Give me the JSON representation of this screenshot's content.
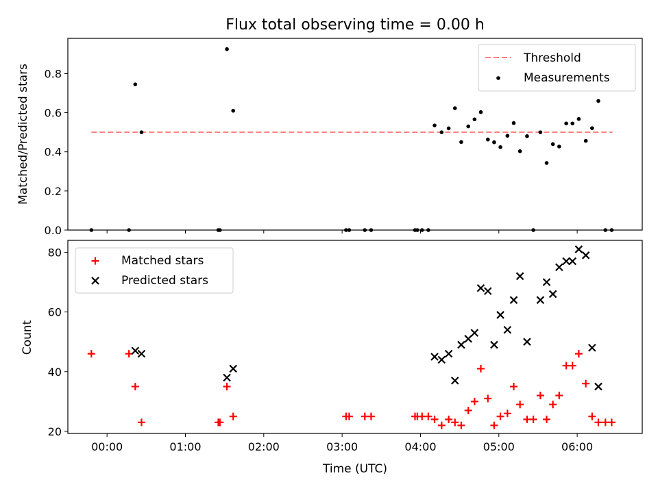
{
  "title": "Flux total observing time = 0.00 h",
  "colors": {
    "threshold": "#ff7f7f",
    "measurement": "#000000",
    "matched": "#ff0000",
    "predicted": "#000000",
    "axes": "#000000",
    "legend_border": "#cccccc"
  },
  "chart_data": [
    {
      "type": "scatter",
      "ylabel": "Matched/Predicted stars",
      "xlabel": "",
      "xlim_hours": [
        -0.5,
        6.83
      ],
      "ylim": [
        0,
        0.98
      ],
      "yticks": [
        0.0,
        0.2,
        0.4,
        0.6,
        0.8
      ],
      "ytick_labels": [
        "0.0",
        "0.2",
        "0.4",
        "0.6",
        "0.8"
      ],
      "legend_position": "top-right",
      "threshold": {
        "name": "Threshold",
        "y": 0.5,
        "x_range_hours": [
          -0.2,
          6.45
        ]
      },
      "series": [
        {
          "name": "Measurements",
          "marker": "dot",
          "points": [
            [
              -0.2,
              0.0
            ],
            [
              0.28,
              0.0
            ],
            [
              0.36,
              0.745
            ],
            [
              0.44,
              0.5
            ],
            [
              1.42,
              0.0
            ],
            [
              1.44,
              0.0
            ],
            [
              1.53,
              0.925
            ],
            [
              1.61,
              0.61
            ],
            [
              3.05,
              0.0
            ],
            [
              3.09,
              0.0
            ],
            [
              3.29,
              0.0
            ],
            [
              3.37,
              0.0
            ],
            [
              3.93,
              0.0
            ],
            [
              3.96,
              0.0
            ],
            [
              4.02,
              0.0
            ],
            [
              4.1,
              0.0
            ],
            [
              4.18,
              0.535
            ],
            [
              4.27,
              0.5
            ],
            [
              4.36,
              0.52
            ],
            [
              4.44,
              0.623
            ],
            [
              4.52,
              0.45
            ],
            [
              4.61,
              0.53
            ],
            [
              4.69,
              0.566
            ],
            [
              4.77,
              0.603
            ],
            [
              4.86,
              0.463
            ],
            [
              4.94,
              0.449
            ],
            [
              5.02,
              0.424
            ],
            [
              5.11,
              0.482
            ],
            [
              5.19,
              0.547
            ],
            [
              5.27,
              0.403
            ],
            [
              5.36,
              0.48
            ],
            [
              5.44,
              0.0
            ],
            [
              5.53,
              0.5
            ],
            [
              5.61,
              0.343
            ],
            [
              5.69,
              0.439
            ],
            [
              5.77,
              0.427
            ],
            [
              5.86,
              0.545
            ],
            [
              5.94,
              0.545
            ],
            [
              6.02,
              0.568
            ],
            [
              6.11,
              0.456
            ],
            [
              6.19,
              0.521
            ],
            [
              6.27,
              0.66
            ],
            [
              6.36,
              0.0
            ],
            [
              6.44,
              0.0
            ]
          ]
        }
      ]
    },
    {
      "type": "scatter",
      "ylabel": "Count",
      "xlabel": "Time (UTC)",
      "xlim_hours": [
        -0.5,
        6.83
      ],
      "ylim": [
        19.3,
        84
      ],
      "yticks": [
        20,
        40,
        60,
        80
      ],
      "ytick_labels": [
        "20",
        "40",
        "60",
        "80"
      ],
      "xticks_hours": [
        0,
        1,
        2,
        3,
        4,
        5,
        6
      ],
      "xtick_labels": [
        "00:00",
        "01:00",
        "02:00",
        "03:00",
        "04:00",
        "05:00",
        "06:00"
      ],
      "legend_position": "top-left",
      "series": [
        {
          "name": "Matched stars",
          "marker": "plus",
          "points": [
            [
              -0.2,
              46
            ],
            [
              0.28,
              46
            ],
            [
              0.36,
              35
            ],
            [
              0.44,
              23
            ],
            [
              1.42,
              23
            ],
            [
              1.44,
              23
            ],
            [
              1.53,
              35
            ],
            [
              1.61,
              25
            ],
            [
              3.05,
              25
            ],
            [
              3.09,
              25
            ],
            [
              3.29,
              25
            ],
            [
              3.37,
              25
            ],
            [
              3.93,
              25
            ],
            [
              3.96,
              25
            ],
            [
              4.02,
              25
            ],
            [
              4.1,
              25
            ],
            [
              4.18,
              24
            ],
            [
              4.27,
              22
            ],
            [
              4.36,
              24
            ],
            [
              4.44,
              23
            ],
            [
              4.52,
              22
            ],
            [
              4.61,
              27
            ],
            [
              4.69,
              30
            ],
            [
              4.77,
              41
            ],
            [
              4.86,
              31
            ],
            [
              4.94,
              22
            ],
            [
              5.02,
              25
            ],
            [
              5.11,
              26
            ],
            [
              5.19,
              35
            ],
            [
              5.27,
              29
            ],
            [
              5.36,
              24
            ],
            [
              5.44,
              24
            ],
            [
              5.53,
              32
            ],
            [
              5.61,
              24
            ],
            [
              5.69,
              29
            ],
            [
              5.77,
              32
            ],
            [
              5.86,
              42
            ],
            [
              5.94,
              42
            ],
            [
              6.02,
              46
            ],
            [
              6.11,
              36
            ],
            [
              6.19,
              25
            ],
            [
              6.27,
              23
            ],
            [
              6.36,
              23
            ],
            [
              6.44,
              23
            ]
          ]
        },
        {
          "name": "Predicted stars",
          "marker": "x",
          "points": [
            [
              0.36,
              47
            ],
            [
              0.44,
              46
            ],
            [
              1.53,
              38
            ],
            [
              1.61,
              41
            ],
            [
              4.18,
              45
            ],
            [
              4.27,
              44
            ],
            [
              4.36,
              46
            ],
            [
              4.44,
              37
            ],
            [
              4.52,
              49
            ],
            [
              4.61,
              51
            ],
            [
              4.69,
              53
            ],
            [
              4.77,
              68
            ],
            [
              4.86,
              67
            ],
            [
              4.94,
              49
            ],
            [
              5.02,
              59
            ],
            [
              5.11,
              54
            ],
            [
              5.19,
              64
            ],
            [
              5.27,
              72
            ],
            [
              5.36,
              50
            ],
            [
              5.53,
              64
            ],
            [
              5.61,
              70
            ],
            [
              5.69,
              66
            ],
            [
              5.77,
              75
            ],
            [
              5.86,
              77
            ],
            [
              5.94,
              77
            ],
            [
              6.02,
              81
            ],
            [
              6.11,
              79
            ],
            [
              6.19,
              48
            ],
            [
              6.27,
              35
            ]
          ]
        }
      ]
    }
  ]
}
